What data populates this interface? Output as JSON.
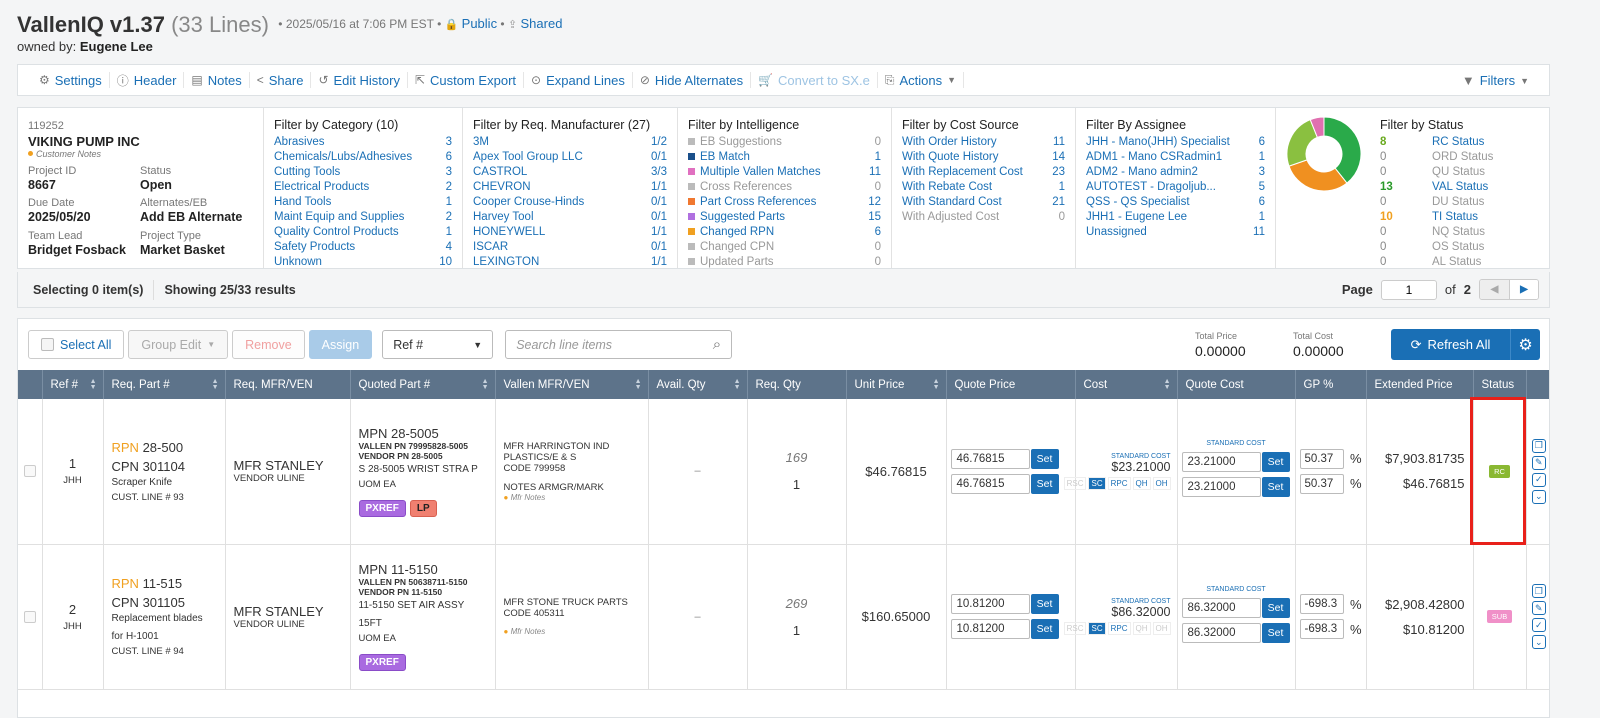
{
  "header": {
    "title": "VallenIQ v1.37",
    "lines": "(33 Lines)",
    "date": "2025/05/16 at 7:06 PM EST",
    "visibility": "Public",
    "shared": "Shared",
    "owner_label": "owned by:",
    "owner": "Eugene Lee"
  },
  "toolbar": {
    "items": [
      "Settings",
      "Header",
      "Notes",
      "Share",
      "Edit History",
      "Custom Export",
      "Expand Lines",
      "Hide Alternates",
      "Convert to SX.e",
      "Actions"
    ],
    "filters": "Filters"
  },
  "customer": {
    "number": "119252",
    "name": "VIKING PUMP INC",
    "notes": "Customer Notes",
    "project_id_label": "Project ID",
    "project_id": "8667",
    "status_label": "Status",
    "status": "Open",
    "due_label": "Due Date",
    "due": "2025/05/20",
    "alt_label": "Alternates/EB",
    "alt": "Add EB Alternate",
    "lead_label": "Team Lead",
    "lead": "Bridget Fosback",
    "type_label": "Project Type",
    "type": "Market Basket"
  },
  "filters": {
    "category": {
      "title": "Filter by Category (10)",
      "rows": [
        {
          "l": "Abrasives",
          "c": "3"
        },
        {
          "l": "Chemicals/Lubs/Adhesives",
          "c": "6"
        },
        {
          "l": "Cutting Tools",
          "c": "3"
        },
        {
          "l": "Electrical Products",
          "c": "2"
        },
        {
          "l": "Hand Tools",
          "c": "1"
        },
        {
          "l": "Maint Equip and Supplies",
          "c": "2"
        },
        {
          "l": "Quality Control Products",
          "c": "1"
        },
        {
          "l": "Safety Products",
          "c": "4"
        },
        {
          "l": "Unknown",
          "c": "10"
        }
      ]
    },
    "manufacturer": {
      "title": "Filter by Req. Manufacturer (27)",
      "rows": [
        {
          "l": "3M",
          "c": "1/2"
        },
        {
          "l": "Apex Tool Group LLC",
          "c": "0/1"
        },
        {
          "l": "CASTROL",
          "c": "3/3"
        },
        {
          "l": "CHEVRON",
          "c": "1/1"
        },
        {
          "l": "Cooper Crouse-Hinds",
          "c": "0/1"
        },
        {
          "l": "Harvey Tool",
          "c": "0/1"
        },
        {
          "l": "HONEYWELL",
          "c": "1/1"
        },
        {
          "l": "ISCAR",
          "c": "0/1"
        },
        {
          "l": "LEXINGTON",
          "c": "1/1"
        }
      ]
    },
    "intelligence": {
      "title": "Filter by Intelligence",
      "rows": [
        {
          "l": "EB Suggestions",
          "c": "0",
          "sq": "#bbb",
          "gray": true
        },
        {
          "l": "EB Match",
          "c": "1",
          "sq": "#1a4f8a"
        },
        {
          "l": "Multiple Vallen Matches",
          "c": "11",
          "sq": "#e070c0"
        },
        {
          "l": "Cross References",
          "c": "0",
          "sq": "#bbb",
          "gray": true
        },
        {
          "l": "Part Cross References",
          "c": "12",
          "sq": "#f07830"
        },
        {
          "l": "Suggested Parts",
          "c": "15",
          "sq": "#b070e0"
        },
        {
          "l": "Changed RPN",
          "c": "6",
          "sq": "#f0a020"
        },
        {
          "l": "Changed CPN",
          "c": "0",
          "sq": "#bbb",
          "gray": true
        },
        {
          "l": "Updated Parts",
          "c": "0",
          "sq": "#bbb",
          "gray": true
        }
      ]
    },
    "cost": {
      "title": "Filter by Cost Source",
      "rows": [
        {
          "l": "With Order History",
          "c": "11"
        },
        {
          "l": "With Quote History",
          "c": "14"
        },
        {
          "l": "With Replacement Cost",
          "c": "23"
        },
        {
          "l": "With Rebate Cost",
          "c": "1"
        },
        {
          "l": "With Standard Cost",
          "c": "21"
        },
        {
          "l": "With Adjusted Cost",
          "c": "0",
          "gray": true
        }
      ]
    },
    "assignee": {
      "title": "Filter By Assignee",
      "rows": [
        {
          "l": "JHH - Mano(JHH) Specialist",
          "c": "6"
        },
        {
          "l": "ADM1 - Mano CSRadmin1",
          "c": "1"
        },
        {
          "l": "ADM2 - Mano admin2",
          "c": "3"
        },
        {
          "l": "AUTOTEST - Dragoljub...",
          "c": "5"
        },
        {
          "l": "QSS - QS Specialist",
          "c": "6"
        },
        {
          "l": "JHH1 - Eugene Lee",
          "c": "1"
        },
        {
          "l": "Unassigned",
          "c": "11"
        }
      ]
    },
    "status": {
      "title": "Filter by Status",
      "rows": [
        {
          "n": "8",
          "l": "RC Status",
          "nc": "#6aaa20"
        },
        {
          "n": "0",
          "l": "ORD Status",
          "gray": true
        },
        {
          "n": "0",
          "l": "QU Status",
          "gray": true
        },
        {
          "n": "13",
          "l": "VAL Status",
          "nc": "#2a9a2a"
        },
        {
          "n": "0",
          "l": "DU Status",
          "gray": true
        },
        {
          "n": "10",
          "l": "TI Status",
          "nc": "#f0a020"
        },
        {
          "n": "0",
          "l": "NQ Status",
          "gray": true
        },
        {
          "n": "0",
          "l": "OS Status",
          "gray": true
        },
        {
          "n": "0",
          "l": "AL Status",
          "gray": true
        }
      ]
    }
  },
  "donut": [
    {
      "color": "#2aaa4a",
      "value": 13
    },
    {
      "color": "#f09020",
      "value": 10
    },
    {
      "color": "#8ac040",
      "value": 8
    },
    {
      "color": "#e070b0",
      "value": 2
    }
  ],
  "counts": {
    "selecting": "Selecting 0 item(s)",
    "showing": "Showing 25/33 results",
    "page_label": "Page",
    "page": "1",
    "of": "of",
    "total_pages": "2"
  },
  "actions": {
    "select_all": "Select All",
    "group_edit": "Group Edit",
    "remove": "Remove",
    "assign": "Assign",
    "ref_select": "Ref #",
    "search_placeholder": "Search line items",
    "total_price_label": "Total Price",
    "total_price": "0.00000",
    "total_cost_label": "Total Cost",
    "total_cost": "0.00000",
    "refresh": "Refresh All"
  },
  "columns": [
    "Ref #",
    "Req. Part #",
    "Req. MFR/VEN",
    "Quoted Part #",
    "Vallen MFR/VEN",
    "Avail. Qty",
    "Req. Qty",
    "Unit Price",
    "Quote Price",
    "Cost",
    "Quote Cost",
    "GP %",
    "Extended Price",
    "Status"
  ],
  "rows": [
    {
      "ref": "1",
      "initials": "JHH",
      "rpn_label": "RPN",
      "rpn": "28-500",
      "cpn_label": "CPN",
      "cpn": "301104",
      "desc": "Scraper Knife",
      "cust_line": "CUST. LINE # 93",
      "mfr": "MFR STANLEY",
      "vendor": "VENDOR ULINE",
      "mpn_label": "MPN",
      "mpn": "28-5005",
      "vallen_pn": "VALLEN PN 79995828-5005",
      "vendor_pn": "VENDOR PN 28-5005",
      "qdesc": "S 28-5005 WRIST STRA P",
      "uom": "UOM EA",
      "tags": [
        "PXREF",
        "LP"
      ],
      "vmfr": "MFR HARRINGTON IND PLASTICS/E & S",
      "vcode": "CODE 799958",
      "vnotes": "NOTES ARMGR/MARK",
      "mfr_notes": "Mfr Notes",
      "avail": "–",
      "req_top": "169",
      "req": "1",
      "unit_price": "$46.76815",
      "quote1": "46.76815",
      "quote2": "46.76815",
      "set": "Set",
      "std_label": "STANDARD COST",
      "std_cost": "$23.21000",
      "cost_tabs": [
        "RSC",
        "SC",
        "RPC",
        "QH",
        "OH"
      ],
      "qcost_label": "STANDARD COST",
      "qcost1": "23.21000",
      "qcost2": "23.21000",
      "gp1": "50.37",
      "gp2": "50.37",
      "pct": "%",
      "ext1": "$7,903.81735",
      "ext2": "$46.76815",
      "status": "RC",
      "status_color": "#8ab832"
    },
    {
      "ref": "2",
      "initials": "JHH",
      "rpn_label": "RPN",
      "rpn": "11-515",
      "cpn_label": "CPN",
      "cpn": "301105",
      "desc": "Replacement blades for H-1001",
      "cust_line": "CUST. LINE # 94",
      "mfr": "MFR STANLEY",
      "vendor": "VENDOR ULINE",
      "mpn_label": "MPN",
      "mpn": "11-5150",
      "vallen_pn": "VALLEN PN 50638711-5150",
      "vendor_pn": "VENDOR PN 11-5150",
      "qdesc": "11-5150 SET AIR ASSY 15FT",
      "uom": "UOM EA",
      "tags": [
        "PXREF"
      ],
      "vmfr": "MFR STONE TRUCK PARTS",
      "vcode": "CODE 405311",
      "vnotes": "",
      "mfr_notes": "Mfr Notes",
      "avail": "–",
      "req_top": "269",
      "req": "1",
      "unit_price": "$160.65000",
      "quote1": "10.81200",
      "quote2": "10.81200",
      "set": "Set",
      "std_label": "STANDARD COST",
      "std_cost": "$86.32000",
      "cost_tabs": [
        "RSC",
        "SC",
        "RPC",
        "QH",
        "OH"
      ],
      "qcost_label": "STANDARD COST",
      "qcost1": "86.32000",
      "qcost2": "86.32000",
      "gp1": "-698.3",
      "gp2": "-698.3",
      "pct": "%",
      "ext1": "$2,908.42800",
      "ext2": "$10.81200",
      "status": "SUB",
      "status_color": "#f090c8"
    }
  ]
}
